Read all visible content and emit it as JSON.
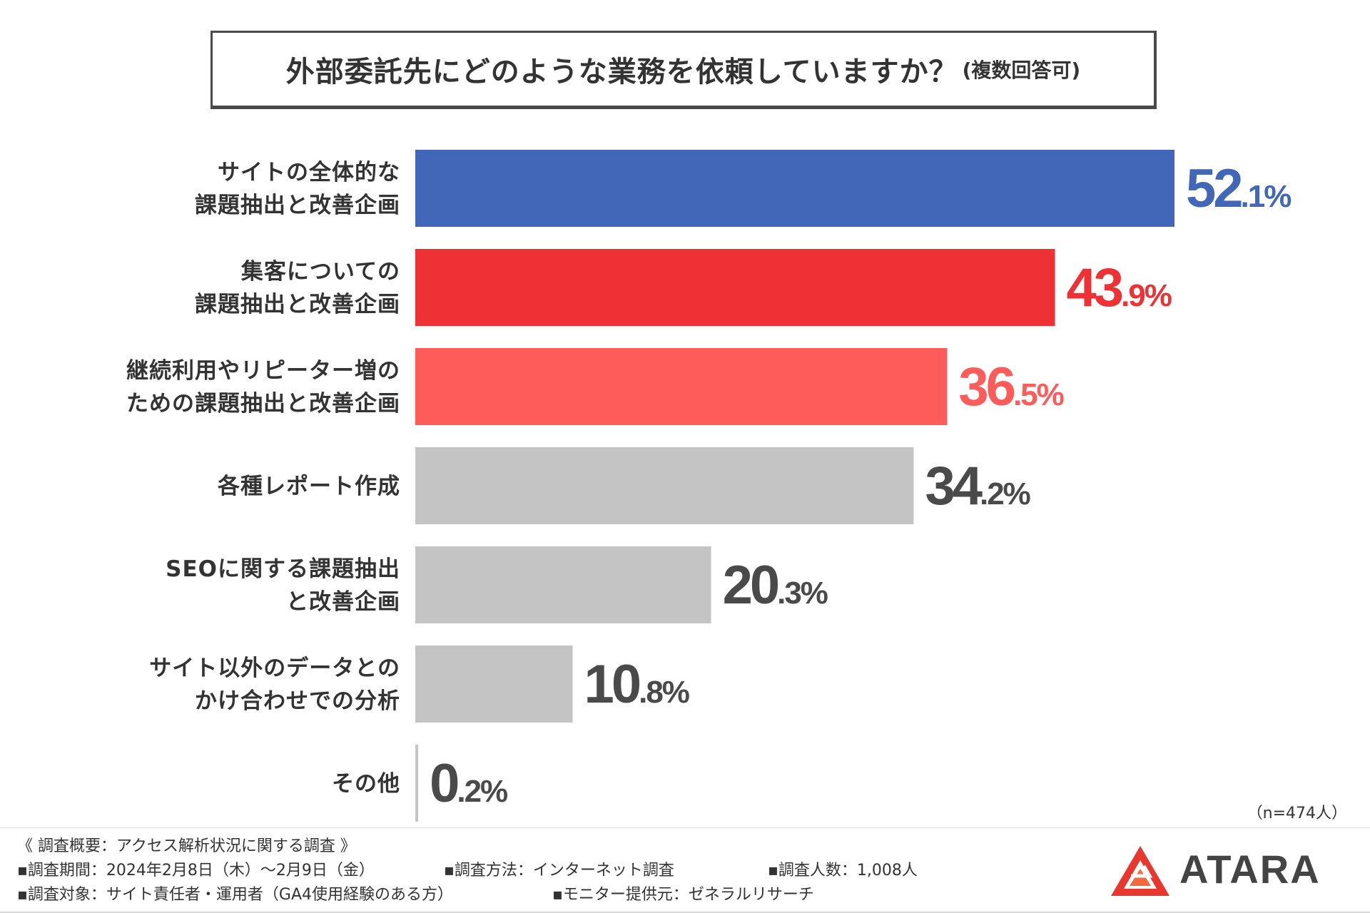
{
  "title": {
    "main": "外部委託先にどのような業務を依頼していますか？",
    "sub": "(複数回答可)"
  },
  "chart_data": {
    "type": "bar",
    "orientation": "horizontal",
    "title": "外部委託先にどのような業務を依頼していますか？(複数回答可)",
    "categories": [
      [
        "サイトの全体的な",
        "課題抽出と改善企画"
      ],
      [
        "集客についての",
        "課題抽出と改善企画"
      ],
      [
        "継続利用やリピーター増の",
        "ための課題抽出と改善企画"
      ],
      [
        "各種レポート作成"
      ],
      [
        "SEOに関する課題抽出",
        "と改善企画"
      ],
      [
        "サイト以外のデータとの",
        "かけ合わせでの分析"
      ],
      [
        "その他"
      ]
    ],
    "values": [
      52.1,
      43.9,
      36.5,
      34.2,
      20.3,
      10.8,
      0.2
    ],
    "unit": "%",
    "bar_colors": [
      "#4267b8",
      "#ee3135",
      "#fe5b5b",
      "#c4c4c4",
      "#c4c4c4",
      "#c4c4c4",
      "#c4c4c4"
    ],
    "label_colors": [
      "#4267b8",
      "#ee3135",
      "#fe5b5b",
      "#4a4a4a",
      "#4a4a4a",
      "#4a4a4a",
      "#4a4a4a"
    ],
    "xlim": [
      0,
      100
    ],
    "grid": false
  },
  "sample_note": "（n=474人）",
  "footer": {
    "heading": "《 調査概要：アクセス解析状況に関する調査 》",
    "period": "▪調査期間：2024年2月8日（木）〜2月9日（金）",
    "method": "▪調査方法：インターネット調査",
    "count": "▪調査人数：1,008人",
    "target": "▪調査対象：サイト責任者・運用者（GA4使用経験のある方）",
    "provider": "▪モニター提供元：ゼネラルリサーチ"
  },
  "logo": {
    "text": "ATARA",
    "color": "#e8372f"
  }
}
